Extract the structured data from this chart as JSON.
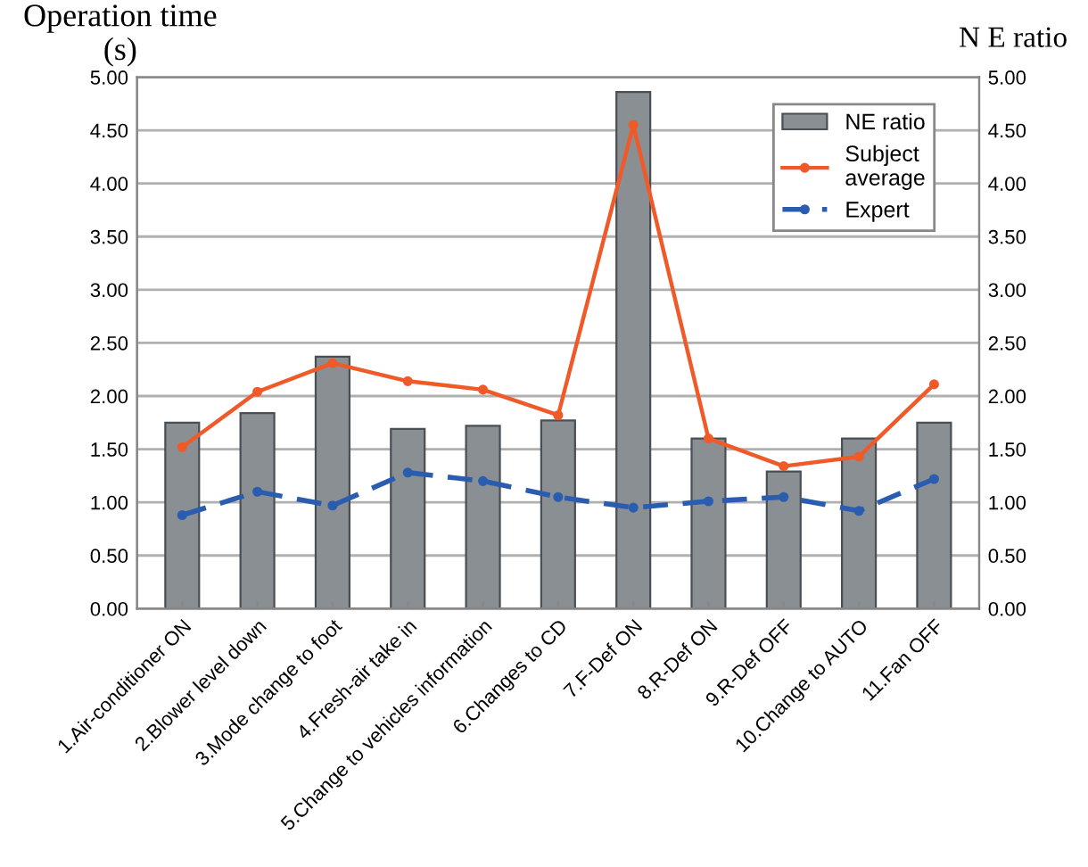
{
  "chart_data": {
    "type": "bar",
    "ylabel": "Operation time\n(s)",
    "y2label": "N E ratio",
    "categories": [
      "1.Air-conditioner ON",
      "2.Blower level down",
      "3.Mode change to foot",
      "4.Fresh-air take in",
      "5.Change to vehicles information",
      "6.Changes to CD",
      "7.F-Def ON",
      "8.R-Def ON",
      "9.R-Def OFF",
      "10.Change to AUTO",
      "11.Fan OFF"
    ],
    "series": [
      {
        "name": "NE ratio",
        "axis": "y2",
        "color": "#8a8f94",
        "values": [
          1.75,
          1.84,
          2.37,
          1.69,
          1.72,
          1.77,
          4.86,
          1.6,
          1.29,
          1.6,
          1.75
        ]
      },
      {
        "name": "Subject\naverage",
        "type": "line",
        "line_style": "solid",
        "marker": "circle",
        "color": "#f05a28",
        "values": [
          1.52,
          2.04,
          2.31,
          2.14,
          2.06,
          1.82,
          4.55,
          1.6,
          1.34,
          1.43,
          2.11
        ]
      },
      {
        "name": "Expert",
        "type": "line",
        "line_style": "dashed",
        "marker": "circle",
        "color": "#2a5db0",
        "values": [
          0.88,
          1.1,
          0.97,
          1.28,
          1.2,
          1.05,
          0.95,
          1.01,
          1.05,
          0.92,
          1.22
        ]
      }
    ],
    "ylim": [
      0,
      5
    ],
    "yticks": [
      {
        "value": 0,
        "label": "0.00"
      },
      {
        "value": 0.5,
        "label": "0.50"
      },
      {
        "value": 1,
        "label": "1.00"
      },
      {
        "value": 1.5,
        "label": "1.50"
      },
      {
        "value": 2,
        "label": "2.00"
      },
      {
        "value": 2.5,
        "label": "2.50"
      },
      {
        "value": 3,
        "label": "3.00"
      },
      {
        "value": 3.5,
        "label": "3.50"
      },
      {
        "value": 4,
        "label": "4.00"
      },
      {
        "value": 4.5,
        "label": "4.50"
      },
      {
        "value": 5,
        "label": "5.00"
      }
    ],
    "y2lim": [
      0,
      5
    ],
    "y2ticks": [
      {
        "value": 0,
        "label": "0.00"
      },
      {
        "value": 0.5,
        "label": "0.50"
      },
      {
        "value": 1,
        "label": "1.00"
      },
      {
        "value": 1.5,
        "label": "1.50"
      },
      {
        "value": 2,
        "label": "2.00"
      },
      {
        "value": 2.5,
        "label": "2.50"
      },
      {
        "value": 3,
        "label": "3.00"
      },
      {
        "value": 3.5,
        "label": "3.50"
      },
      {
        "value": 4,
        "label": "4.00"
      },
      {
        "value": 4.5,
        "label": "4.50"
      },
      {
        "value": 5,
        "label": "5.00"
      }
    ],
    "grid": "y",
    "legend": "top right"
  }
}
